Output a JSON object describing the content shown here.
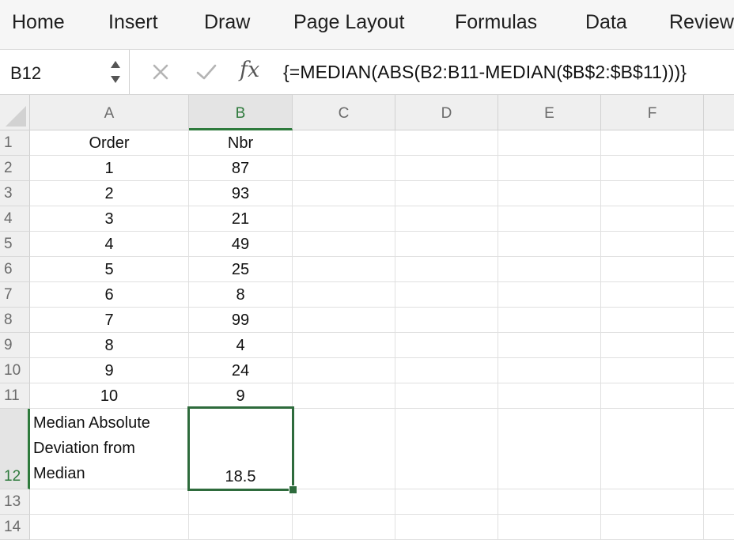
{
  "ribbon": {
    "tabs": [
      "Home",
      "Insert",
      "Draw",
      "Page Layout",
      "Formulas",
      "Data",
      "Review"
    ]
  },
  "formula_bar": {
    "name_box": "B12",
    "fx_label": "fx",
    "formula": "{=MEDIAN(ABS(B2:B11-MEDIAN($B$2:$B$11)))}"
  },
  "columns": [
    "A",
    "B",
    "C",
    "D",
    "E",
    "F"
  ],
  "rows": [
    "1",
    "2",
    "3",
    "4",
    "5",
    "6",
    "7",
    "8",
    "9",
    "10",
    "11",
    "12",
    "13",
    "14"
  ],
  "cells": {
    "A1": "Order",
    "B1": "Nbr",
    "A2": "1",
    "B2": "87",
    "A3": "2",
    "B3": "93",
    "A4": "3",
    "B4": "21",
    "A5": "4",
    "B5": "49",
    "A6": "5",
    "B6": "25",
    "A7": "6",
    "B7": "8",
    "A8": "7",
    "B8": "99",
    "A9": "8",
    "B9": "4",
    "A10": "9",
    "B10": "24",
    "A11": "10",
    "B11": "9",
    "A12_line1": "Median Absolute",
    "A12_line2": "Deviation from",
    "A12_line3": "Median",
    "B12": "18.5"
  },
  "selected_cell": "B12",
  "colors": {
    "selection": "#2e6b3c",
    "header_bg": "#efefef",
    "gridline": "#e0e0e0"
  }
}
